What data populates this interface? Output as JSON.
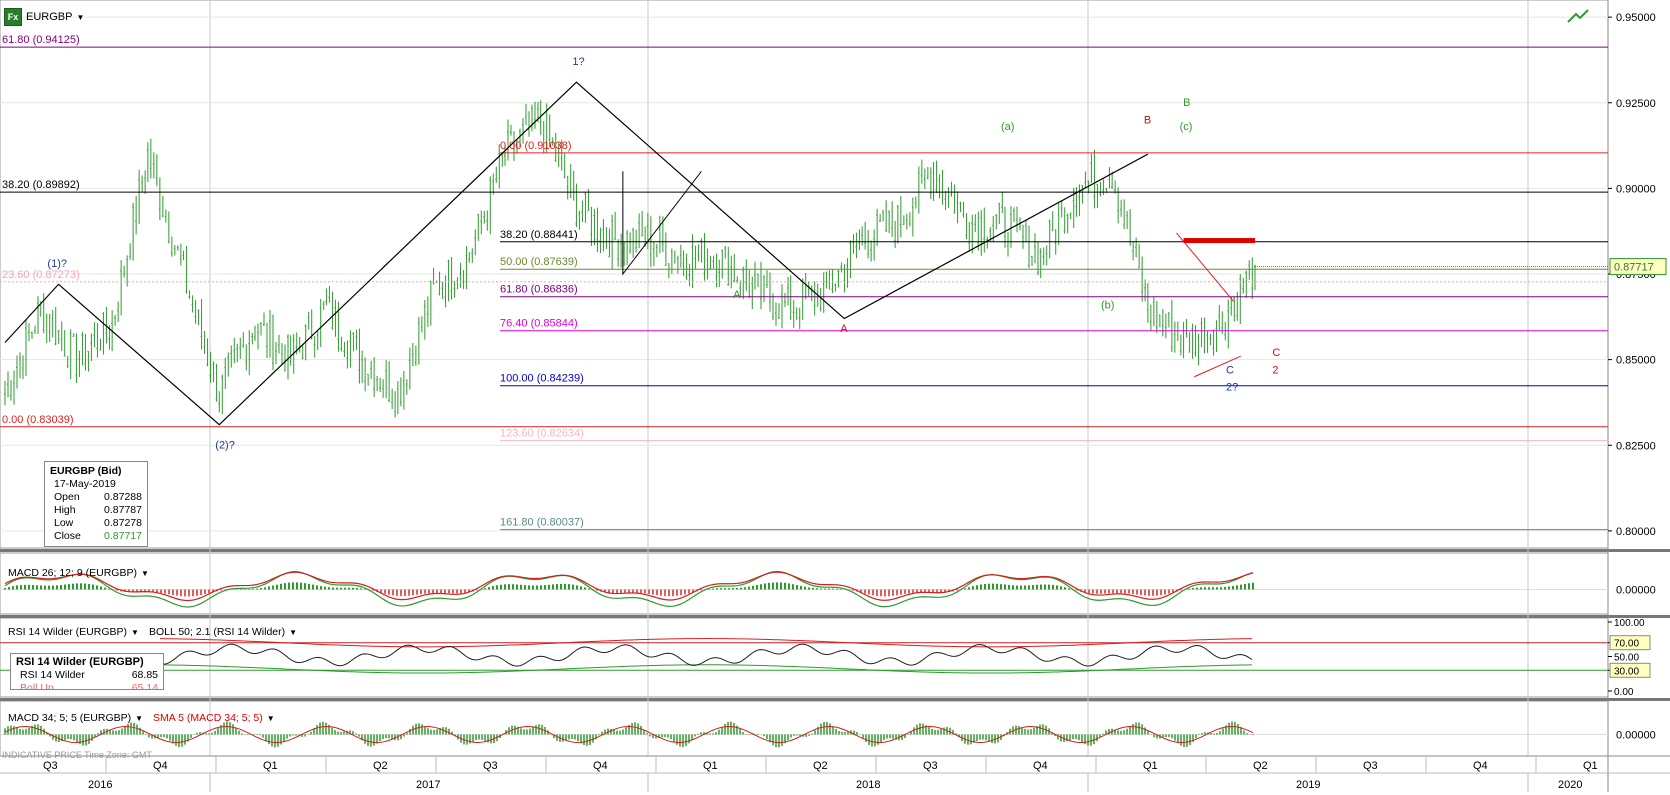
{
  "header": {
    "symbol": "EURGBP",
    "fx_label": "Fx"
  },
  "info": {
    "title": "EURGBP (Bid)",
    "date": "17-May-2019",
    "rows": [
      {
        "k": "Open",
        "v": "0.87288"
      },
      {
        "k": "High",
        "v": "0.87787"
      },
      {
        "k": "Low",
        "v": "0.87278"
      },
      {
        "k": "Close",
        "v": "0.87717"
      }
    ]
  },
  "macd1_label": "MACD 26; 12; 9 (EURGBP)",
  "rsi_label": "RSI 14 Wilder (EURGBP)",
  "boll_label": "BOLL 50; 2.1 (RSI 14 Wilder)",
  "rsi_box": {
    "title": "RSI 14 Wilder (EURGBP)",
    "k": "RSI 14 Wilder",
    "v": "68.85",
    "k2": "Boll Up",
    "v2": "65.14"
  },
  "macd2_label": "MACD 34; 5; 5 (EURGBP)",
  "sma_label": "SMA 5 (MACD 34; 5; 5)",
  "footer_note": "INDICATIVE PRICE   Time Zone: GMT",
  "colors": {
    "up": "#2e9a2e",
    "down": "#c0392b",
    "black": "#000000",
    "purple": "#800080",
    "magenta": "#e000e0",
    "blue": "#0000cc",
    "pink": "#f4a6b6",
    "teal": "#5a8a8a",
    "wave_blue": "#1a3a9a"
  },
  "chart_data": {
    "type": "line",
    "title": "EURGBP",
    "ylim": [
      0.795,
      0.955
    ],
    "y_ticks": [
      "0.95000",
      "0.92500",
      "0.90000",
      "0.87500",
      "0.85000",
      "0.82500",
      "0.80000"
    ],
    "current_price": "0.87717",
    "x_quarters": [
      "Q3",
      "Q4",
      "Q1",
      "Q2",
      "Q3",
      "Q4",
      "Q1",
      "Q2",
      "Q3",
      "Q4",
      "Q1",
      "Q2",
      "Q3",
      "Q4",
      "Q1"
    ],
    "x_years": [
      "2016",
      "2017",
      "2018",
      "2019",
      "2020"
    ],
    "series": [
      {
        "x": [
          "2016-06",
          "2016-07",
          "2016-08",
          "2016-09",
          "2016-10",
          "2016-11",
          "2016-12",
          "2017-01",
          "2017-02",
          "2017-03",
          "2017-04",
          "2017-05",
          "2017-06",
          "2017-07",
          "2017-08",
          "2017-09",
          "2017-10",
          "2017-11",
          "2017-12",
          "2018-01",
          "2018-02",
          "2018-03",
          "2018-04",
          "2018-05",
          "2018-06",
          "2018-07",
          "2018-08",
          "2018-09",
          "2018-10",
          "2018-11",
          "2018-12",
          "2019-01",
          "2019-02",
          "2019-03",
          "2019-04",
          "2019-05"
        ],
        "values": [
          0.84,
          0.865,
          0.85,
          0.86,
          0.91,
          0.875,
          0.84,
          0.86,
          0.85,
          0.865,
          0.85,
          0.84,
          0.87,
          0.88,
          0.91,
          0.92,
          0.895,
          0.885,
          0.885,
          0.88,
          0.88,
          0.87,
          0.865,
          0.87,
          0.885,
          0.89,
          0.905,
          0.89,
          0.89,
          0.88,
          0.9,
          0.905,
          0.865,
          0.855,
          0.86,
          0.87717
        ]
      }
    ],
    "fib_levels": [
      {
        "label": "61.80 (0.94125)",
        "value": 0.94125
      },
      {
        "label": "38.20 (0.89892)",
        "value": 0.89892
      },
      {
        "label": "23.60 (0.87273)",
        "value": 0.87273
      },
      {
        "label": "0.00 (0.83039)",
        "value": 0.83039
      },
      {
        "label": "0.00 (0.91038)",
        "value": 0.91038
      },
      {
        "label": "38.20 (0.88441)",
        "value": 0.88441
      },
      {
        "label": "50.00 (0.87639)",
        "value": 0.87639
      },
      {
        "label": "61.80 (0.86836)",
        "value": 0.86836
      },
      {
        "label": "76.40 (0.85844)",
        "value": 0.85844
      },
      {
        "label": "100.00 (0.84239)",
        "value": 0.84239
      },
      {
        "label": "123.60 (0.82634)",
        "value": 0.82634
      },
      {
        "label": "161.80 (0.80037)",
        "value": 0.80037
      }
    ],
    "wave_labels": [
      "1?",
      "(1)?",
      "(2)?",
      "A",
      "A",
      "(a)",
      "(b)",
      "(c)",
      "B",
      "B",
      "C",
      "C",
      "2?",
      "2"
    ],
    "macd1_ticks": [
      "0.00000"
    ],
    "rsi_ticks": [
      "100.00",
      "70.00",
      "50.00",
      "30.00",
      "0.00"
    ],
    "macd2_ticks": [
      "0.00000"
    ]
  }
}
